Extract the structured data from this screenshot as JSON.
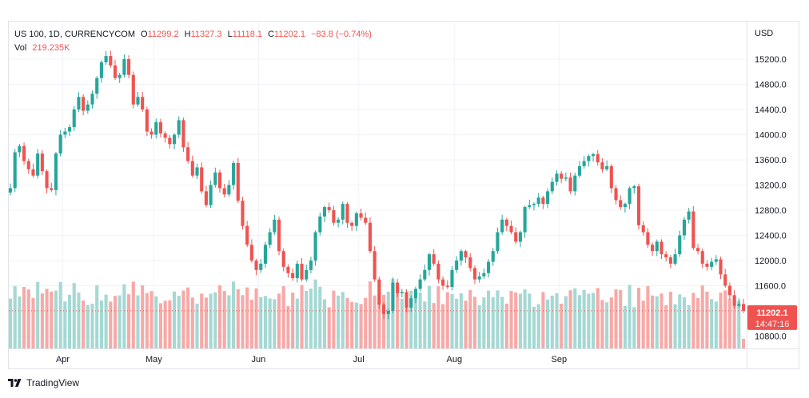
{
  "legend": {
    "symbol": "US 100, 1D, CURRENCYCOM",
    "open_label": "O",
    "open": "11299.2",
    "high_label": "H",
    "high": "11327.3",
    "low_label": "L",
    "low": "11118.1",
    "close_label": "C",
    "close": "11202.1",
    "change": "−83.8 (−0.74%)",
    "vol_label": "Vol",
    "vol": "219.235K"
  },
  "price_tag": {
    "price": "11202.1",
    "countdown": "14:47:16"
  },
  "branding": {
    "name": "TradingView"
  },
  "colors": {
    "up": "#26a69a",
    "down": "#ef5350",
    "vol_up": "#a5d8d3",
    "vol_down": "#f7a9a7"
  },
  "chart_data": {
    "type": "candlestick",
    "currency": "USD",
    "y_ticks": [
      "15200.0",
      "14800.0",
      "14400.0",
      "14000.0",
      "13600.0",
      "13200.0",
      "12800.0",
      "12400.0",
      "12000.0",
      "11600.0",
      "10800.0"
    ],
    "y_range": [
      10600,
      15500
    ],
    "x_labels": [
      "Apr",
      "May",
      "Jun",
      "Jul",
      "Aug",
      "Sep"
    ],
    "first_date": "2022-03-16",
    "grid": true,
    "closes": [
      13150,
      13720,
      13820,
      13580,
      13450,
      13350,
      13700,
      13420,
      13150,
      13120,
      13700,
      14000,
      14050,
      14120,
      14400,
      14600,
      14380,
      14480,
      14650,
      14900,
      15150,
      15250,
      15100,
      14900,
      14950,
      15200,
      14950,
      14480,
      14600,
      14400,
      14050,
      14000,
      14200,
      14020,
      13950,
      13850,
      14000,
      14230,
      13800,
      13580,
      13350,
      13480,
      13100,
      12880,
      13200,
      13400,
      13150,
      13050,
      13200,
      13550,
      12950,
      12550,
      12250,
      12000,
      11850,
      11950,
      12250,
      12450,
      12650,
      12150,
      11900,
      11800,
      11720,
      11950,
      11700,
      11850,
      12000,
      12450,
      12700,
      12850,
      12800,
      12600,
      12650,
      12900,
      12600,
      12550,
      12750,
      12680,
      12600,
      12150,
      11700,
      11300,
      11150,
      11200,
      11650,
      11480,
      11500,
      11250,
      11400,
      11550,
      11700,
      11850,
      12100,
      11950,
      11700,
      11600,
      11580,
      11850,
      12000,
      12150,
      12050,
      11880,
      11700,
      11750,
      11800,
      11980,
      12150,
      12450,
      12650,
      12550,
      12450,
      12300,
      12450,
      12850,
      12880,
      12900,
      13000,
      12900,
      13100,
      13250,
      13380,
      13300,
      13320,
      13100,
      13350,
      13500,
      13580,
      13660,
      13690,
      13560,
      13450,
      13500,
      13150,
      12960,
      12850,
      12900,
      13150,
      13180,
      12560,
      12450,
      12250,
      12150,
      12300,
      12100,
      12050,
      11950,
      12100,
      12400,
      12650,
      12780,
      12200,
      12150,
      11950,
      11900,
      11980,
      12020,
      11780,
      11600,
      11450,
      11280,
      11310,
      11202
    ]
  }
}
